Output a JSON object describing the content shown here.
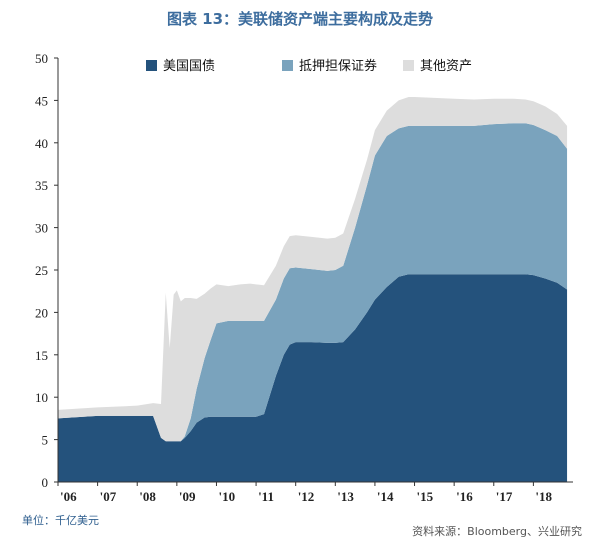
{
  "title": "图表 13：美联储资产端主要构成及走势",
  "unit_note": "单位：千亿美元",
  "source_note": "资料来源：Bloomberg、兴业研究",
  "chart_data": {
    "type": "area",
    "stacked": true,
    "x_tick_labels": [
      "'06",
      "'07",
      "'08",
      "'09",
      "'10",
      "'11",
      "'12",
      "'13",
      "'14",
      "'15",
      "'16",
      "'17",
      "'18"
    ],
    "x": [
      2006.0,
      2007.0,
      2008.0,
      2008.4,
      2008.6,
      2008.72,
      2008.82,
      2008.92,
      2009.0,
      2009.1,
      2009.2,
      2009.35,
      2009.5,
      2009.7,
      2009.85,
      2010.0,
      2010.3,
      2010.6,
      2010.85,
      2011.0,
      2011.2,
      2011.5,
      2011.7,
      2011.85,
      2012.0,
      2012.4,
      2012.8,
      2013.0,
      2013.2,
      2013.5,
      2013.8,
      2014.0,
      2014.3,
      2014.6,
      2014.85,
      2015.0,
      2015.5,
      2016.0,
      2016.5,
      2017.0,
      2017.5,
      2017.8,
      2018.0,
      2018.3,
      2018.6,
      2018.85
    ],
    "series": [
      {
        "name": "美国国债",
        "color": "#24527c",
        "values": [
          7.5,
          7.8,
          7.8,
          7.8,
          5.2,
          4.8,
          4.8,
          4.8,
          4.8,
          4.8,
          5.2,
          6.0,
          7.0,
          7.6,
          7.7,
          7.7,
          7.7,
          7.7,
          7.7,
          7.7,
          8.0,
          12.5,
          15.0,
          16.2,
          16.5,
          16.5,
          16.4,
          16.4,
          16.5,
          18.0,
          20.0,
          21.5,
          23.0,
          24.2,
          24.5,
          24.5,
          24.5,
          24.5,
          24.5,
          24.5,
          24.5,
          24.5,
          24.4,
          24.0,
          23.5,
          22.7
        ]
      },
      {
        "name": "抵押担保证券",
        "color": "#7aa3bd",
        "values": [
          0,
          0,
          0,
          0,
          0,
          0,
          0,
          0,
          0,
          0,
          0.2,
          1.5,
          4.0,
          7.0,
          9.0,
          11.0,
          11.3,
          11.3,
          11.3,
          11.3,
          11.0,
          9.0,
          9.0,
          9.0,
          8.8,
          8.6,
          8.5,
          8.6,
          9.0,
          12.0,
          15.0,
          17.0,
          17.8,
          17.5,
          17.5,
          17.5,
          17.5,
          17.5,
          17.5,
          17.7,
          17.8,
          17.8,
          17.7,
          17.5,
          17.3,
          16.6
        ]
      },
      {
        "name": "其他资产",
        "color": "#dddddd",
        "values": [
          1.0,
          1.0,
          1.2,
          1.5,
          4.0,
          17.5,
          11.0,
          17.3,
          17.8,
          16.5,
          16.3,
          14.2,
          10.6,
          7.6,
          6.1,
          4.6,
          4.1,
          4.3,
          4.4,
          4.3,
          4.2,
          4.0,
          3.8,
          3.8,
          3.8,
          3.8,
          3.8,
          3.8,
          3.8,
          3.4,
          3.0,
          3.0,
          3.0,
          3.3,
          3.4,
          3.4,
          3.3,
          3.2,
          3.1,
          3.0,
          2.9,
          2.8,
          2.8,
          2.8,
          2.6,
          2.7
        ]
      }
    ],
    "ylim": [
      0,
      50
    ],
    "yticks": [
      0,
      5,
      10,
      15,
      20,
      25,
      30,
      35,
      40,
      45,
      50
    ],
    "legend_position": "top"
  }
}
